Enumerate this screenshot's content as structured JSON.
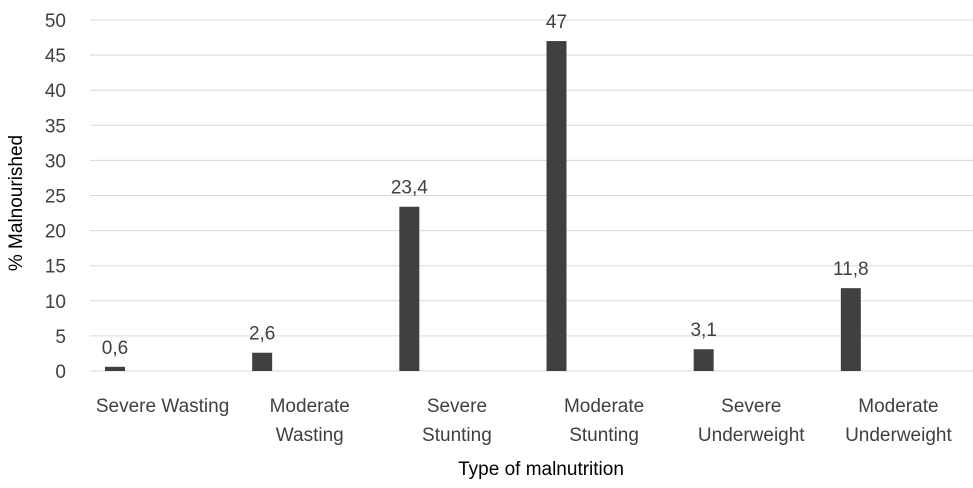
{
  "chart_data": {
    "type": "bar",
    "title": "",
    "xlabel": "Type of malnutrition",
    "ylabel": "% Malnourished",
    "ylim": [
      0,
      50
    ],
    "yticks": [
      0,
      5,
      10,
      15,
      20,
      25,
      30,
      35,
      40,
      45,
      50
    ],
    "grid": "horizontal",
    "legend": "none",
    "bar_color": "#404040",
    "grid_color": "#d9d9d9",
    "categories": [
      [
        "Severe Wasting"
      ],
      [
        "Moderate",
        "Wasting"
      ],
      [
        "Severe",
        "Stunting"
      ],
      [
        "Moderate",
        "Stunting"
      ],
      [
        "Severe",
        "Underweight"
      ],
      [
        "Moderate",
        "Underweight"
      ]
    ],
    "values": [
      0.6,
      2.6,
      23.4,
      47,
      3.1,
      11.8
    ],
    "data_labels": [
      "0,6",
      "2,6",
      "23,4",
      "47",
      "3,1",
      "11,8"
    ]
  }
}
